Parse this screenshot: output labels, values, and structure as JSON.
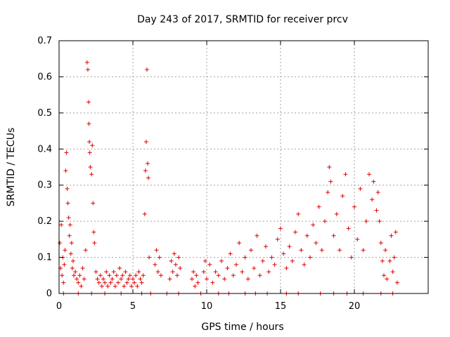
{
  "chart_data": {
    "type": "scatter",
    "title": "Day 243 of 2017, SRMTID for receiver prcv",
    "xlabel": "GPS time / hours",
    "ylabel": "SRMTID / TECUs",
    "xlim": [
      0,
      25
    ],
    "ylim": [
      0,
      0.7
    ],
    "xticks": [
      "0",
      "5",
      "10",
      "15",
      "20"
    ],
    "yticks": [
      "0",
      "0.1",
      "0.2",
      "0.3",
      "0.4",
      "0.5",
      "0.6",
      "0.7"
    ],
    "grid": true,
    "marker": "+",
    "color": "#e00000",
    "series": [
      {
        "name": "prcv",
        "points": [
          [
            0.05,
            0.14
          ],
          [
            0.1,
            0.07
          ],
          [
            0.15,
            0.19
          ],
          [
            0.2,
            0.05
          ],
          [
            0.25,
            0.1
          ],
          [
            0.3,
            0.03
          ],
          [
            0.35,
            0.08
          ],
          [
            0.4,
            0.12
          ],
          [
            0.45,
            0.34
          ],
          [
            0.5,
            0.39
          ],
          [
            0.55,
            0.29
          ],
          [
            0.6,
            0.25
          ],
          [
            0.65,
            0.21
          ],
          [
            0.7,
            0.16
          ],
          [
            0.75,
            0.19
          ],
          [
            0.8,
            0.11
          ],
          [
            0.85,
            0.14
          ],
          [
            0.9,
            0.07
          ],
          [
            0.95,
            0.09
          ],
          [
            1.0,
            0.05
          ],
          [
            1.1,
            0.06
          ],
          [
            1.2,
            0.04
          ],
          [
            1.3,
            0.03
          ],
          [
            1.4,
            0.05
          ],
          [
            1.5,
            0.02
          ],
          [
            1.6,
            0.07
          ],
          [
            1.7,
            0.04
          ],
          [
            1.8,
            0.12
          ],
          [
            1.9,
            0.64
          ],
          [
            1.95,
            0.62
          ],
          [
            2.0,
            0.53
          ],
          [
            2.02,
            0.47
          ],
          [
            2.05,
            0.42
          ],
          [
            2.08,
            0.39
          ],
          [
            2.12,
            0.35
          ],
          [
            2.2,
            0.33
          ],
          [
            2.25,
            0.41
          ],
          [
            2.3,
            0.25
          ],
          [
            2.35,
            0.17
          ],
          [
            2.4,
            0.14
          ],
          [
            2.5,
            0.06
          ],
          [
            2.6,
            0.04
          ],
          [
            2.7,
            0.03
          ],
          [
            2.8,
            0.05
          ],
          [
            2.9,
            0.02
          ],
          [
            3.0,
            0.04
          ],
          [
            3.1,
            0.03
          ],
          [
            3.2,
            0.06
          ],
          [
            3.3,
            0.02
          ],
          [
            3.4,
            0.05
          ],
          [
            3.5,
            0.03
          ],
          [
            3.6,
            0.04
          ],
          [
            3.7,
            0.06
          ],
          [
            3.8,
            0.02
          ],
          [
            3.9,
            0.05
          ],
          [
            4.0,
            0.03
          ],
          [
            4.1,
            0.07
          ],
          [
            4.2,
            0.04
          ],
          [
            4.3,
            0.05
          ],
          [
            4.4,
            0.02
          ],
          [
            4.5,
            0.06
          ],
          [
            4.6,
            0.03
          ],
          [
            4.7,
            0.04
          ],
          [
            4.8,
            0.05
          ],
          [
            4.9,
            0.02
          ],
          [
            5.0,
            0.04
          ],
          [
            5.1,
            0.03
          ],
          [
            5.2,
            0.05
          ],
          [
            5.3,
            0.02
          ],
          [
            5.4,
            0.06
          ],
          [
            5.5,
            0.04
          ],
          [
            5.6,
            0.03
          ],
          [
            5.7,
            0.05
          ],
          [
            5.8,
            0.22
          ],
          [
            5.85,
            0.34
          ],
          [
            5.9,
            0.42
          ],
          [
            5.95,
            0.62
          ],
          [
            6.0,
            0.36
          ],
          [
            6.05,
            0.32
          ],
          [
            6.1,
            0.1
          ],
          [
            6.5,
            0.08
          ],
          [
            6.6,
            0.12
          ],
          [
            6.7,
            0.06
          ],
          [
            6.8,
            0.1
          ],
          [
            6.9,
            0.05
          ],
          [
            7.5,
            0.04
          ],
          [
            7.6,
            0.09
          ],
          [
            7.7,
            0.06
          ],
          [
            7.8,
            0.11
          ],
          [
            7.9,
            0.08
          ],
          [
            8.0,
            0.05
          ],
          [
            8.1,
            0.1
          ],
          [
            8.2,
            0.07
          ],
          [
            9.0,
            0.04
          ],
          [
            9.1,
            0.06
          ],
          [
            9.2,
            0.02
          ],
          [
            9.3,
            0.05
          ],
          [
            9.4,
            0.03
          ],
          [
            9.8,
            0.06
          ],
          [
            9.9,
            0.09
          ],
          [
            10.0,
            0.04
          ],
          [
            10.2,
            0.08
          ],
          [
            10.4,
            0.03
          ],
          [
            10.6,
            0.06
          ],
          [
            10.8,
            0.05
          ],
          [
            11.0,
            0.09
          ],
          [
            11.2,
            0.04
          ],
          [
            11.4,
            0.07
          ],
          [
            11.6,
            0.11
          ],
          [
            11.8,
            0.05
          ],
          [
            12.0,
            0.08
          ],
          [
            12.2,
            0.14
          ],
          [
            12.4,
            0.06
          ],
          [
            12.6,
            0.1
          ],
          [
            12.8,
            0.04
          ],
          [
            13.0,
            0.12
          ],
          [
            13.2,
            0.07
          ],
          [
            13.4,
            0.16
          ],
          [
            13.6,
            0.05
          ],
          [
            13.8,
            0.09
          ],
          [
            14.0,
            0.13
          ],
          [
            14.2,
            0.06
          ],
          [
            14.4,
            0.1
          ],
          [
            14.6,
            0.08
          ],
          [
            14.8,
            0.15
          ],
          [
            15.0,
            0.18
          ],
          [
            15.2,
            0.11
          ],
          [
            15.4,
            0.07
          ],
          [
            15.6,
            0.13
          ],
          [
            15.8,
            0.09
          ],
          [
            16.0,
            0.17
          ],
          [
            16.2,
            0.22
          ],
          [
            16.4,
            0.12
          ],
          [
            16.6,
            0.08
          ],
          [
            16.8,
            0.16
          ],
          [
            17.0,
            0.1
          ],
          [
            17.2,
            0.19
          ],
          [
            17.4,
            0.14
          ],
          [
            17.6,
            0.24
          ],
          [
            17.8,
            0.12
          ],
          [
            18.0,
            0.2
          ],
          [
            18.2,
            0.28
          ],
          [
            18.3,
            0.35
          ],
          [
            18.4,
            0.31
          ],
          [
            18.6,
            0.16
          ],
          [
            18.8,
            0.22
          ],
          [
            19.0,
            0.12
          ],
          [
            19.2,
            0.27
          ],
          [
            19.4,
            0.33
          ],
          [
            19.6,
            0.18
          ],
          [
            19.8,
            0.1
          ],
          [
            20.0,
            0.24
          ],
          [
            20.2,
            0.15
          ],
          [
            20.4,
            0.29
          ],
          [
            20.6,
            0.12
          ],
          [
            20.8,
            0.2
          ],
          [
            21.0,
            0.33
          ],
          [
            21.2,
            0.26
          ],
          [
            21.3,
            0.31
          ],
          [
            21.5,
            0.23
          ],
          [
            21.6,
            0.28
          ],
          [
            21.7,
            0.2
          ],
          [
            21.8,
            0.14
          ],
          [
            21.9,
            0.09
          ],
          [
            22.0,
            0.05
          ],
          [
            22.1,
            0.12
          ],
          [
            22.2,
            0.04
          ],
          [
            22.4,
            0.09
          ],
          [
            22.5,
            0.16
          ],
          [
            22.6,
            0.06
          ],
          [
            22.7,
            0.1
          ],
          [
            22.8,
            0.17
          ],
          [
            22.9,
            0.03
          ],
          [
            0.3,
            0.0
          ],
          [
            1.3,
            0.0
          ],
          [
            2.2,
            0.0
          ],
          [
            3.1,
            0.0
          ],
          [
            4.2,
            0.0
          ],
          [
            5.6,
            0.0
          ],
          [
            6.2,
            0.0
          ],
          [
            7.3,
            0.0
          ],
          [
            8.1,
            0.0
          ],
          [
            9.6,
            0.0
          ],
          [
            10.8,
            0.0
          ],
          [
            11.5,
            0.0
          ],
          [
            12.6,
            0.0
          ],
          [
            13.3,
            0.0
          ],
          [
            14.1,
            0.0
          ],
          [
            15.4,
            0.0
          ],
          [
            16.2,
            0.0
          ],
          [
            17.7,
            0.0
          ],
          [
            18.6,
            0.0
          ],
          [
            19.5,
            0.0
          ],
          [
            20.6,
            0.0
          ],
          [
            21.8,
            0.0
          ],
          [
            22.6,
            0.0
          ]
        ]
      }
    ]
  }
}
